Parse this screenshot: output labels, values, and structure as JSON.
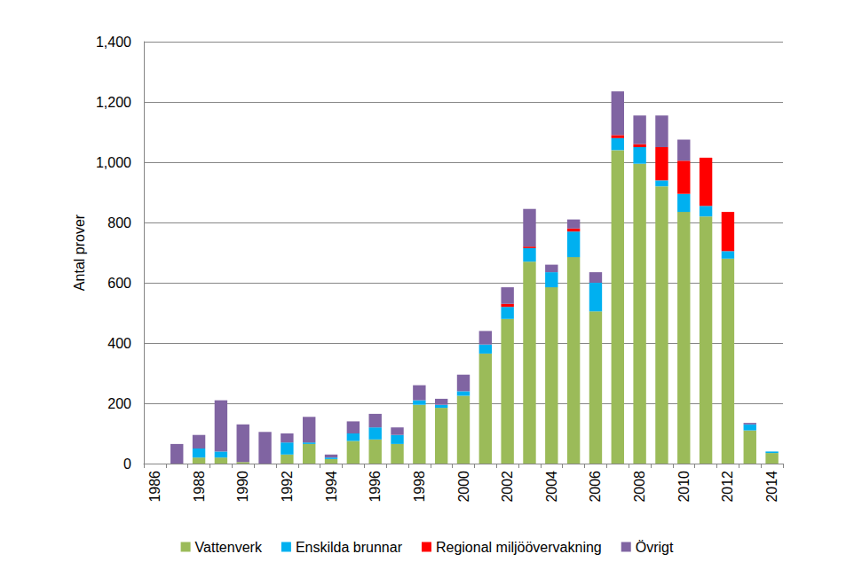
{
  "chart_data": {
    "type": "bar",
    "stacked": true,
    "y_label": "Antal prover",
    "categories": [
      "1986",
      null,
      "1988",
      null,
      "1990",
      null,
      "1992",
      null,
      "1994",
      null,
      "1996",
      null,
      "1998",
      null,
      "2000",
      null,
      "2002",
      null,
      "2004",
      null,
      "2006",
      null,
      "2008",
      null,
      "2010",
      null,
      "2012",
      null,
      "2014"
    ],
    "series": [
      {
        "name": "Vattenverk",
        "color": "#9bbb59",
        "values": [
          0,
          0,
          20,
          20,
          5,
          0,
          30,
          65,
          15,
          75,
          80,
          65,
          195,
          185,
          225,
          365,
          480,
          670,
          585,
          685,
          505,
          1040,
          995,
          920,
          835,
          820,
          680,
          110,
          35
        ]
      },
      {
        "name": "Enskilda brunnar",
        "color": "#00b0f0",
        "values": [
          0,
          0,
          30,
          20,
          0,
          0,
          40,
          5,
          5,
          25,
          40,
          30,
          15,
          10,
          15,
          30,
          40,
          45,
          50,
          85,
          95,
          40,
          55,
          20,
          60,
          35,
          25,
          20,
          5
        ]
      },
      {
        "name": "Regional miljöövervakning",
        "color": "#ff0000",
        "values": [
          0,
          0,
          0,
          0,
          0,
          0,
          0,
          0,
          0,
          0,
          0,
          0,
          0,
          0,
          0,
          0,
          10,
          5,
          0,
          10,
          0,
          10,
          10,
          110,
          110,
          160,
          130,
          0,
          0
        ]
      },
      {
        "name": "Övrigt",
        "color": "#8064a2",
        "values": [
          0,
          65,
          45,
          170,
          125,
          105,
          30,
          85,
          10,
          40,
          45,
          25,
          50,
          20,
          55,
          45,
          55,
          125,
          25,
          30,
          35,
          145,
          95,
          105,
          70,
          0,
          0,
          5,
          0
        ]
      }
    ],
    "ylim": [
      0,
      1400
    ],
    "yticks": [
      0,
      200,
      400,
      600,
      800,
      1000,
      1200,
      1400
    ],
    "grid": true,
    "legend": "bottom"
  }
}
